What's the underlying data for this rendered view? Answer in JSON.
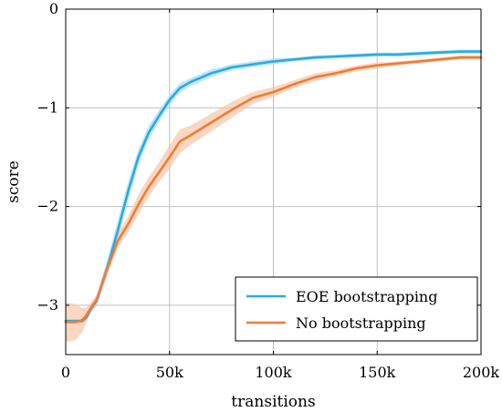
{
  "chart_data": {
    "type": "line",
    "xlabel": "transitions",
    "ylabel": "score",
    "xlim": [
      0,
      200000
    ],
    "ylim": [
      -3.5,
      0
    ],
    "x_ticks": [
      0,
      50000,
      100000,
      150000,
      200000
    ],
    "x_tick_labels": [
      "0",
      "50k",
      "100k",
      "150k",
      "200k"
    ],
    "y_ticks": [
      0,
      -1,
      -2,
      -3
    ],
    "y_tick_labels": [
      "0",
      "−1",
      "−2",
      "−3"
    ],
    "grid": true,
    "legend_position": "bottom-right",
    "series": [
      {
        "name": "EOE bootstrapping",
        "color": "#29abe2",
        "band_color": "#a6dcf2",
        "x": [
          0,
          5000,
          8000,
          10000,
          12000,
          15000,
          20000,
          25000,
          30000,
          35000,
          40000,
          45000,
          50000,
          55000,
          60000,
          70000,
          80000,
          90000,
          100000,
          110000,
          120000,
          130000,
          140000,
          150000,
          160000,
          170000,
          180000,
          190000,
          200000
        ],
        "y": [
          -3.16,
          -3.16,
          -3.16,
          -3.12,
          -3.04,
          -2.95,
          -2.62,
          -2.25,
          -1.85,
          -1.5,
          -1.25,
          -1.08,
          -0.92,
          -0.8,
          -0.74,
          -0.65,
          -0.59,
          -0.56,
          -0.53,
          -0.51,
          -0.49,
          -0.48,
          -0.47,
          -0.46,
          -0.46,
          -0.45,
          -0.44,
          -0.43,
          -0.43
        ],
        "band_width": [
          0.02,
          0.02,
          0.02,
          0.03,
          0.04,
          0.06,
          0.08,
          0.1,
          0.1,
          0.08,
          0.07,
          0.06,
          0.05,
          0.05,
          0.04,
          0.04,
          0.03,
          0.03,
          0.03,
          0.02,
          0.02,
          0.02,
          0.02,
          0.02,
          0.02,
          0.02,
          0.02,
          0.02,
          0.02
        ]
      },
      {
        "name": "No bootstrapping",
        "color": "#f07b36",
        "band_color": "#f6c6a6",
        "x": [
          0,
          5000,
          8000,
          10000,
          12000,
          15000,
          20000,
          25000,
          30000,
          35000,
          40000,
          45000,
          50000,
          55000,
          60000,
          70000,
          80000,
          90000,
          100000,
          110000,
          120000,
          130000,
          140000,
          150000,
          160000,
          170000,
          180000,
          190000,
          200000
        ],
        "y": [
          -3.17,
          -3.17,
          -3.15,
          -3.1,
          -3.03,
          -2.94,
          -2.63,
          -2.35,
          -2.18,
          -1.98,
          -1.8,
          -1.65,
          -1.5,
          -1.34,
          -1.28,
          -1.15,
          -1.02,
          -0.9,
          -0.84,
          -0.76,
          -0.69,
          -0.65,
          -0.6,
          -0.57,
          -0.55,
          -0.53,
          -0.51,
          -0.49,
          -0.49
        ],
        "band_width": [
          0.2,
          0.18,
          0.12,
          0.08,
          0.05,
          0.05,
          0.06,
          0.07,
          0.08,
          0.1,
          0.1,
          0.1,
          0.12,
          0.12,
          0.1,
          0.09,
          0.08,
          0.06,
          0.05,
          0.04,
          0.04,
          0.03,
          0.03,
          0.03,
          0.02,
          0.02,
          0.02,
          0.02,
          0.02
        ]
      }
    ]
  }
}
